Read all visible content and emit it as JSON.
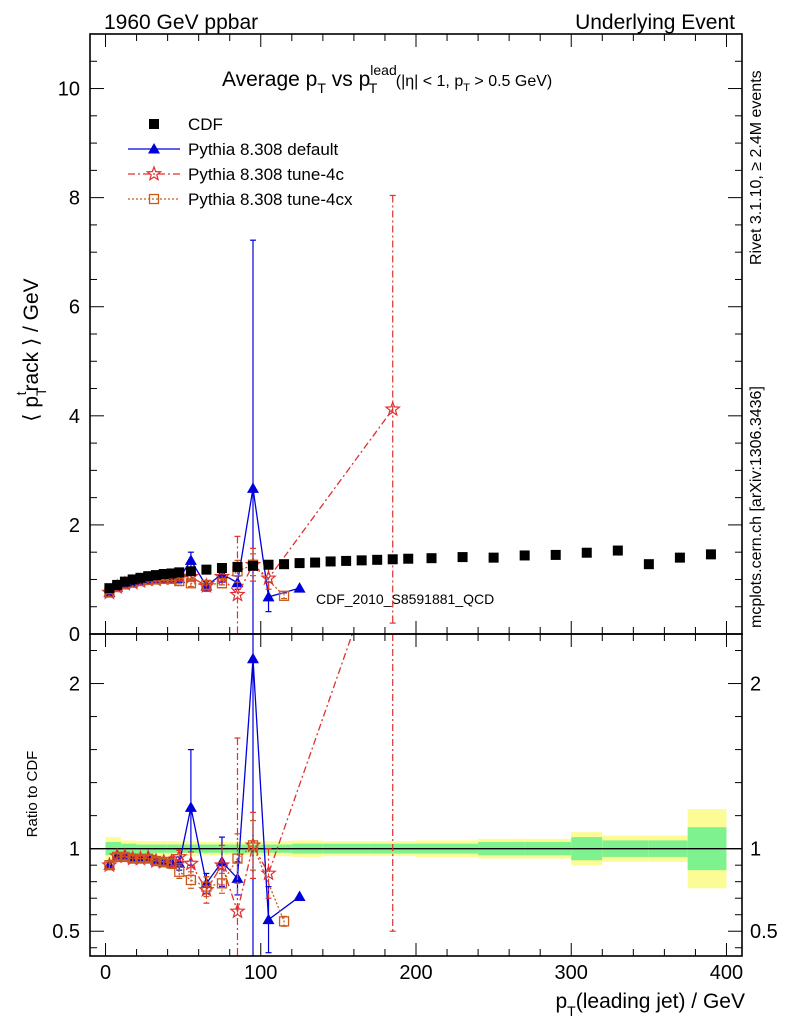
{
  "header": {
    "left": "1960 GeV ppbar",
    "right": "Underlying Event"
  },
  "side_labels": {
    "rivet": "Rivet 3.1.10, ≥ 2.4M events",
    "mcplots": "mcplots.cern.ch [arXiv:1306.3436]"
  },
  "chart_data": {
    "type": "scatter",
    "title_parts": {
      "prefix": "Average p",
      "sub1": "T",
      "mid": " vs p",
      "sup2": "lead",
      "sub2": "T",
      "cond_a": " (|η| < 1, p",
      "cond_sub": "T",
      "cond_b": " > 0.5 GeV)"
    },
    "analysis_label": "CDF_2010_S8591881_QCD",
    "xlabel_parts": {
      "main": "p",
      "sub": "T",
      "rest": "(leading jet) / GeV"
    },
    "ylabel_parts": {
      "a": "⟨ p",
      "sub": "T",
      "sup": "t",
      "b": "rack ⟩ / GeV"
    },
    "ratio_ylabel": "Ratio to CDF",
    "x_range": [
      -10,
      410
    ],
    "y_range": [
      0,
      11
    ],
    "ratio_range": [
      0.35,
      2.3
    ],
    "x_ticks": [
      0,
      100,
      200,
      300,
      400
    ],
    "y_ticks": [
      0,
      2,
      4,
      6,
      8,
      10
    ],
    "ratio_ticks": [
      0.5,
      1,
      2
    ],
    "legend": [
      "CDF",
      "Pythia 8.308 default",
      "Pythia 8.308 tune-4c",
      "Pythia 8.308 tune-4cx"
    ],
    "colors": {
      "data": "#000000",
      "default": "#0000dd",
      "tune4c": "#e03030",
      "tune4cx": "#c85a1e",
      "band_inner": "#7ef28e",
      "band_outer": "#fcfc96"
    },
    "cdf": {
      "x": [
        2.5,
        7.5,
        12.5,
        17.5,
        22.5,
        27.5,
        32.5,
        37.5,
        42.5,
        47.5,
        55,
        65,
        75,
        85,
        95,
        105,
        115,
        125,
        135,
        145,
        155,
        165,
        175,
        185,
        195,
        210,
        230,
        250,
        270,
        290,
        310,
        330,
        350,
        370,
        390
      ],
      "y": [
        0.84,
        0.9,
        0.96,
        1.0,
        1.03,
        1.06,
        1.08,
        1.1,
        1.11,
        1.13,
        1.15,
        1.18,
        1.21,
        1.23,
        1.25,
        1.27,
        1.28,
        1.3,
        1.31,
        1.33,
        1.34,
        1.35,
        1.36,
        1.37,
        1.38,
        1.39,
        1.41,
        1.4,
        1.44,
        1.45,
        1.49,
        1.53,
        1.28,
        1.4,
        1.46
      ]
    },
    "band": {
      "edges": [
        0,
        10,
        20,
        40,
        60,
        80,
        100,
        120,
        140,
        170,
        200,
        240,
        270,
        300,
        320,
        350,
        375,
        400
      ],
      "inner": [
        0.04,
        0.03,
        0.025,
        0.025,
        0.025,
        0.025,
        0.025,
        0.03,
        0.03,
        0.03,
        0.03,
        0.04,
        0.04,
        0.07,
        0.05,
        0.05,
        0.13
      ],
      "outer": [
        0.07,
        0.05,
        0.045,
        0.045,
        0.04,
        0.04,
        0.045,
        0.05,
        0.045,
        0.045,
        0.05,
        0.06,
        0.06,
        0.1,
        0.08,
        0.08,
        0.24
      ]
    },
    "series": [
      {
        "name": "Pythia 8.308 default",
        "key": "default",
        "marker": "triangle",
        "x": [
          2.5,
          7.5,
          12.5,
          17.5,
          22.5,
          27.5,
          32.5,
          37.5,
          42.5,
          47.5,
          55,
          65,
          75,
          85,
          95,
          105,
          125
        ],
        "y": [
          0.76,
          0.86,
          0.92,
          0.95,
          0.98,
          1.0,
          1.02,
          1.01,
          1.02,
          1.02,
          1.35,
          0.88,
          1.1,
          0.94,
          2.67,
          0.68,
          0.84
        ],
        "err": [
          0.02,
          0.02,
          0.02,
          0.02,
          0.02,
          0.02,
          0.03,
          0.03,
          0.04,
          0.06,
          0.15,
          0.08,
          0.15,
          0.12,
          4.55,
          0.27,
          0.0
        ],
        "ratio": [
          0.9,
          0.955,
          0.955,
          0.945,
          0.94,
          0.945,
          0.93,
          0.915,
          0.915,
          0.91,
          1.25,
          0.79,
          0.92,
          0.82,
          2.15,
          0.57,
          0.71
        ],
        "ratio_err": [
          0.02,
          0.02,
          0.02,
          0.02,
          0.02,
          0.02,
          0.02,
          0.02,
          0.03,
          0.04,
          0.35,
          0.06,
          0.15,
          0.1,
          3.5,
          0.2,
          0.0
        ]
      },
      {
        "name": "Pythia 8.308 tune-4c",
        "key": "tune4c",
        "marker": "star",
        "x": [
          2.5,
          7.5,
          12.5,
          17.5,
          22.5,
          27.5,
          32.5,
          37.5,
          42.5,
          47.5,
          55,
          65,
          75,
          85,
          95,
          105,
          185
        ],
        "y": [
          0.76,
          0.86,
          0.92,
          0.94,
          0.97,
          1.0,
          1.0,
          1.02,
          1.02,
          1.05,
          1.05,
          0.88,
          1.05,
          0.72,
          1.27,
          1.02,
          4.12
        ],
        "err": [
          0.02,
          0.02,
          0.02,
          0.02,
          0.02,
          0.02,
          0.03,
          0.03,
          0.04,
          0.06,
          0.08,
          0.1,
          0.15,
          1.07,
          0.3,
          0.2,
          3.92
        ],
        "ratio": [
          0.9,
          0.955,
          0.955,
          0.94,
          0.94,
          0.945,
          0.925,
          0.92,
          0.92,
          0.95,
          0.91,
          0.75,
          0.9,
          0.62,
          1.02,
          0.85,
          3.0
        ],
        "ratio_err": [
          0.02,
          0.02,
          0.02,
          0.02,
          0.02,
          0.02,
          0.02,
          0.02,
          0.03,
          0.04,
          0.07,
          0.08,
          0.12,
          1.05,
          0.2,
          0.15,
          2.5
        ]
      },
      {
        "name": "Pythia 8.308 tune-4cx",
        "key": "tune4cx",
        "marker": "square-open",
        "x": [
          2.5,
          7.5,
          12.5,
          17.5,
          22.5,
          27.5,
          32.5,
          37.5,
          42.5,
          47.5,
          55,
          65,
          75,
          85,
          95,
          115
        ],
        "y": [
          0.76,
          0.86,
          0.91,
          0.94,
          0.97,
          0.99,
          1.0,
          1.01,
          1.01,
          0.97,
          0.93,
          0.9,
          0.93,
          1.15,
          1.27,
          0.7
        ],
        "err": [
          0.02,
          0.02,
          0.02,
          0.02,
          0.02,
          0.02,
          0.03,
          0.03,
          0.03,
          0.05,
          0.06,
          0.08,
          0.08,
          0.2,
          0.2,
          0.05
        ],
        "ratio": [
          0.9,
          0.95,
          0.95,
          0.94,
          0.94,
          0.94,
          0.925,
          0.92,
          0.91,
          0.86,
          0.81,
          0.77,
          0.79,
          0.94,
          1.02,
          0.56
        ],
        "ratio_err": [
          0.02,
          0.02,
          0.02,
          0.02,
          0.02,
          0.02,
          0.02,
          0.02,
          0.03,
          0.04,
          0.05,
          0.06,
          0.06,
          0.15,
          0.15,
          0.03
        ]
      }
    ]
  }
}
